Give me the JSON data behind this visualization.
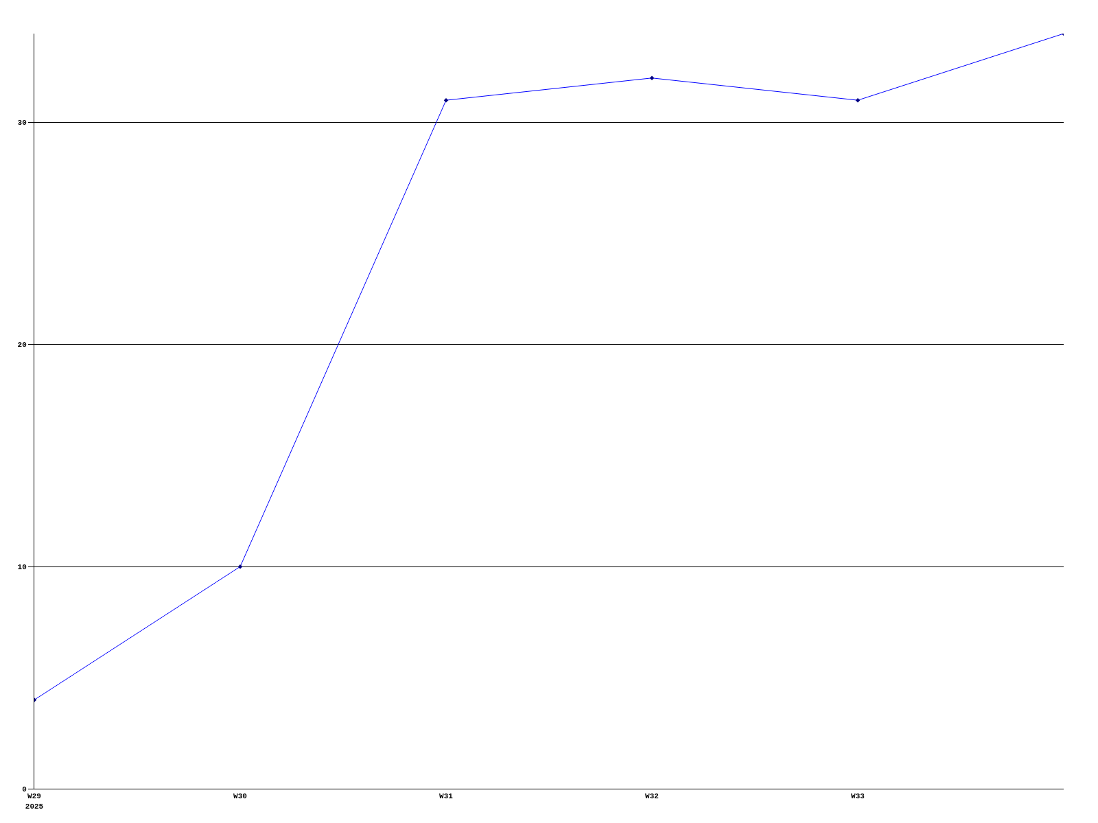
{
  "chart_data": {
    "type": "line",
    "categories": [
      "W29\n2025",
      "W30",
      "W31",
      "W32",
      "W33",
      null
    ],
    "series": [
      {
        "color": "#0000ff",
        "values": [
          4,
          10,
          31,
          32,
          31,
          34
        ]
      }
    ],
    "ylim": [
      0,
      34
    ],
    "yticks": [
      0,
      10,
      20,
      30
    ],
    "grid": "y",
    "marker": "diamond",
    "line_style": "solid"
  }
}
